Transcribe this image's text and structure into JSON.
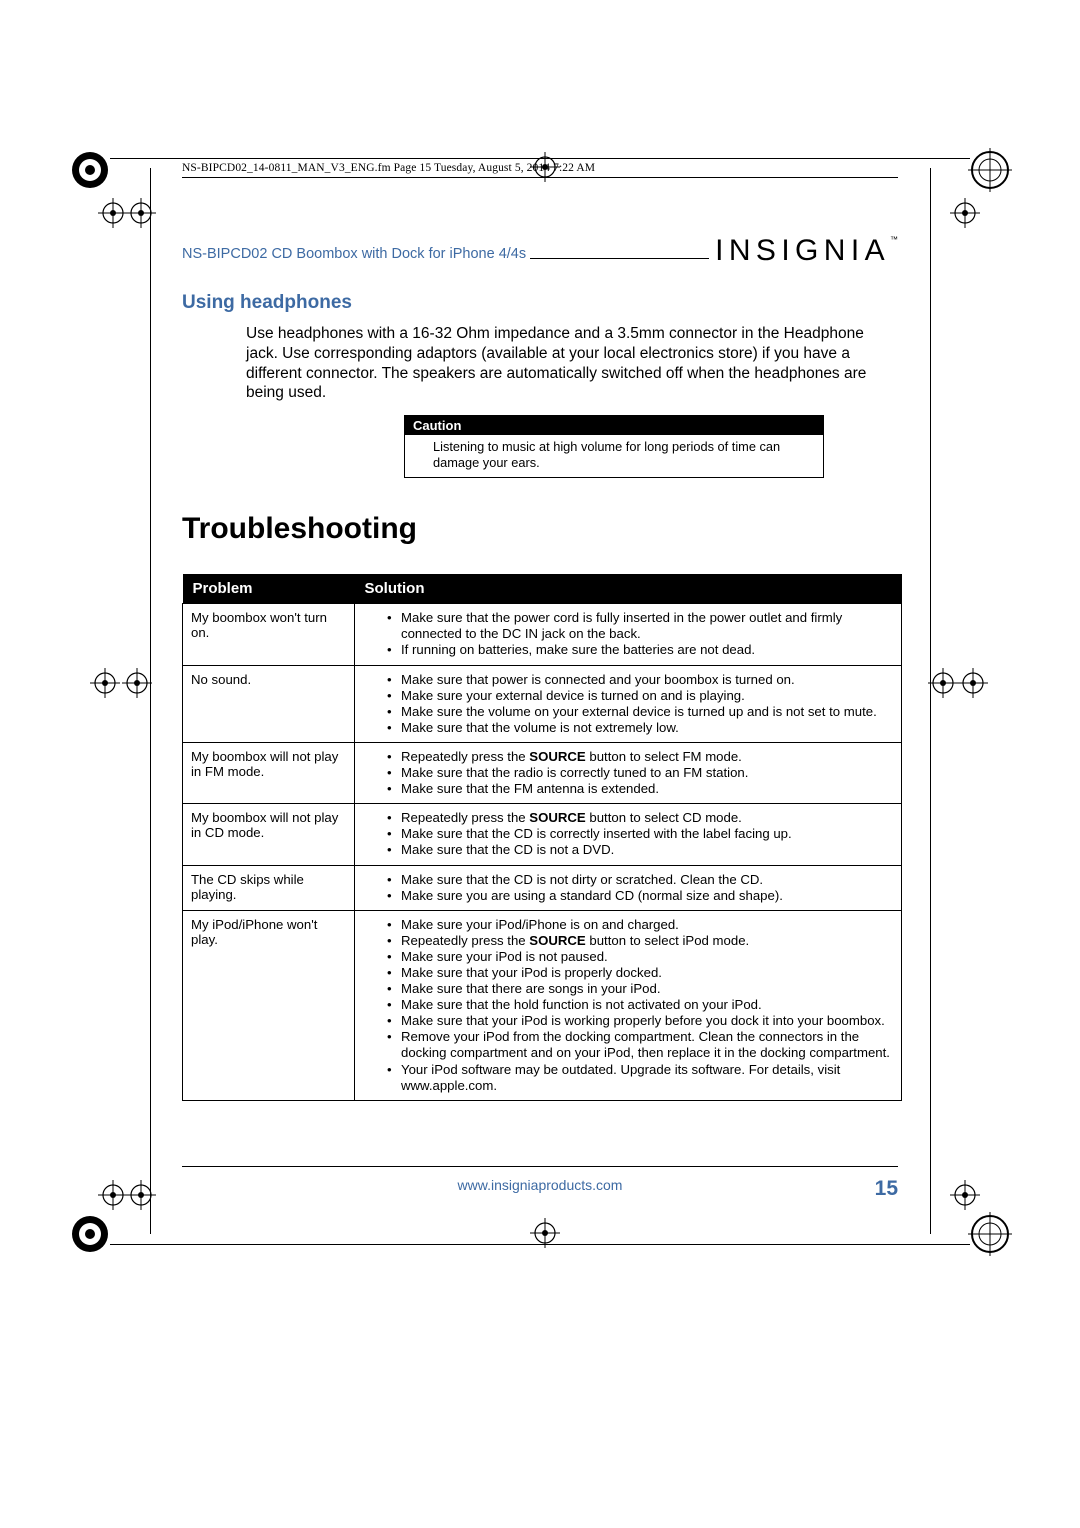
{
  "meta_line": "NS-BIPCD02_14-0811_MAN_V3_ENG.fm  Page 15  Tuesday, August 5, 2014  7:22 AM",
  "doc_title": "NS-BIPCD02 CD Boombox with Dock for iPhone 4/4s",
  "brand": "INSIGNIA",
  "section_heading": "Using headphones",
  "body_paragraph": "Use headphones with a 16-32 Ohm impedance and a 3.5mm connector in the Headphone jack. Use corresponding adaptors (available at your local electronics store) if you have a different connector. The speakers are automatically switched off when the headphones are being used.",
  "caution": {
    "label": "Caution",
    "text": "Listening to music at high volume for long periods of time can damage your ears."
  },
  "big_heading": "Troubleshooting",
  "table": {
    "headers": {
      "problem": "Problem",
      "solution": "Solution"
    },
    "rows": [
      {
        "problem": "My boombox won't turn on.",
        "solutions": [
          "Make sure that the power cord is fully inserted in the power outlet and firmly connected to the DC IN jack on the back.",
          "If running on batteries, make sure the batteries are not dead."
        ]
      },
      {
        "problem": "No sound.",
        "solutions": [
          "Make sure that power is connected and your boombox is turned on.",
          "Make sure your external device is turned on and is playing.",
          "Make sure the volume on your external device is turned up and is not set to mute.",
          "Make sure that the volume is not extremely low."
        ]
      },
      {
        "problem": "My boombox will not play in FM mode.",
        "solutions": [
          "Repeatedly press the <b>SOURCE</b> button to select FM mode.",
          "Make sure that the radio is correctly tuned to an FM station.",
          "Make sure that the FM antenna is extended."
        ]
      },
      {
        "problem": "My boombox will not play in CD mode.",
        "solutions": [
          "Repeatedly press the <b>SOURCE</b> button to select CD mode.",
          "Make sure that the CD is correctly inserted with the label facing up.",
          "Make sure that the CD is not a DVD."
        ]
      },
      {
        "problem": "The CD skips while playing.",
        "solutions": [
          "Make sure that the CD is not dirty or scratched. Clean the CD.",
          "Make sure you are using a standard CD (normal size and shape)."
        ]
      },
      {
        "problem": "My iPod/iPhone won't play.",
        "solutions": [
          "Make sure your iPod/iPhone is on and charged.",
          "Repeatedly press the <b>SOURCE</b> button to select iPod mode.",
          "Make sure your iPod is not paused.",
          "Make sure that your iPod is properly docked.",
          "Make sure that there are songs in your iPod.",
          "Make sure that the hold function is not activated on your iPod.",
          "Make sure that your iPod is working properly before you dock it into your boombox.",
          "Remove your iPod from the docking compartment. Clean the connectors in the docking compartment and on your iPod, then replace it in the docking compartment.",
          "Your iPod software may be outdated. Upgrade its software. For details, visit www.apple.com."
        ]
      }
    ]
  },
  "footer": {
    "url": "www.insigniaproducts.com",
    "page": "15"
  },
  "colors": {
    "accent": "#3d6aa3",
    "text": "#000000",
    "bg": "#ffffff"
  }
}
